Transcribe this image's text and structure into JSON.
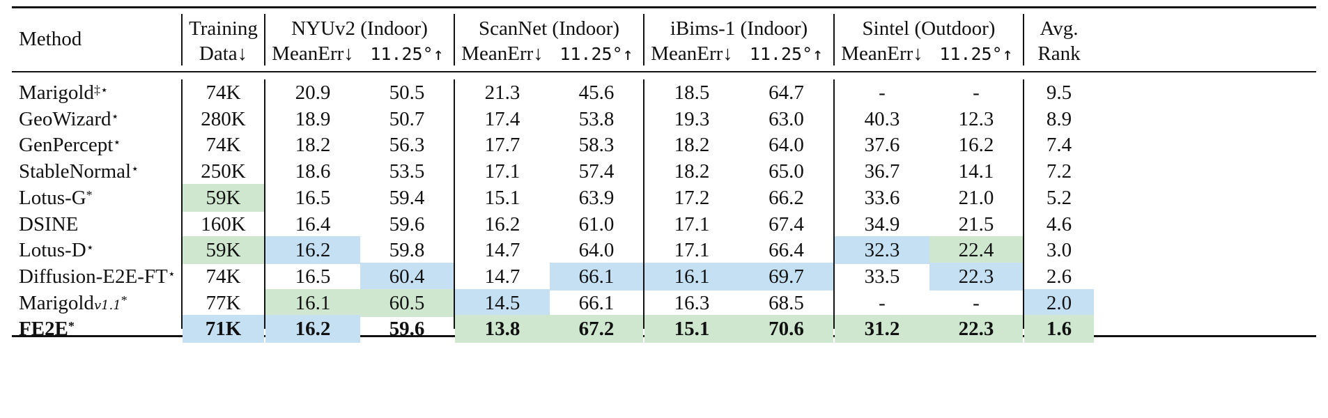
{
  "table": {
    "header": {
      "method": "Method",
      "training_line1": "Training",
      "training_line2": "Data↓",
      "groups": [
        "NYUv2 (Indoor)",
        "ScanNet (Indoor)",
        "iBims-1 (Indoor)",
        "Sintel (Outdoor)"
      ],
      "meanerr": "MeanErr↓",
      "angle": "11.25°↑",
      "rank_line1": "Avg.",
      "rank_line2": "Rank"
    },
    "rows": [
      {
        "name": "Marigold",
        "sup": "‡⋆",
        "sub": "",
        "bold": false,
        "values": [
          "74K",
          "20.9",
          "50.5",
          "21.3",
          "45.6",
          "18.5",
          "64.7",
          "-",
          "-",
          "9.5"
        ],
        "highlight": [
          "",
          "",
          "",
          "",
          "",
          "",
          "",
          "",
          "",
          ""
        ]
      },
      {
        "name": "GeoWizard",
        "sup": "⋆",
        "sub": "",
        "bold": false,
        "values": [
          "280K",
          "18.9",
          "50.7",
          "17.4",
          "53.8",
          "19.3",
          "63.0",
          "40.3",
          "12.3",
          "8.9"
        ],
        "highlight": [
          "",
          "",
          "",
          "",
          "",
          "",
          "",
          "",
          "",
          ""
        ]
      },
      {
        "name": "GenPercept",
        "sup": "⋆",
        "sub": "",
        "bold": false,
        "values": [
          "74K",
          "18.2",
          "56.3",
          "17.7",
          "58.3",
          "18.2",
          "64.0",
          "37.6",
          "16.2",
          "7.4"
        ],
        "highlight": [
          "",
          "",
          "",
          "",
          "",
          "",
          "",
          "",
          "",
          ""
        ]
      },
      {
        "name": "StableNormal",
        "sup": "⋆",
        "sub": "",
        "bold": false,
        "values": [
          "250K",
          "18.6",
          "53.5",
          "17.1",
          "57.4",
          "18.2",
          "65.0",
          "36.7",
          "14.1",
          "7.2"
        ],
        "highlight": [
          "",
          "",
          "",
          "",
          "",
          "",
          "",
          "",
          "",
          ""
        ]
      },
      {
        "name": "Lotus-G",
        "sup": "*",
        "sub": "",
        "bold": false,
        "values": [
          "59K",
          "16.5",
          "59.4",
          "15.1",
          "63.9",
          "17.2",
          "66.2",
          "33.6",
          "21.0",
          "5.2"
        ],
        "highlight": [
          "green",
          "",
          "",
          "",
          "",
          "",
          "",
          "",
          "",
          ""
        ]
      },
      {
        "name": "DSINE",
        "sup": "",
        "sub": "",
        "bold": false,
        "values": [
          "160K",
          "16.4",
          "59.6",
          "16.2",
          "61.0",
          "17.1",
          "67.4",
          "34.9",
          "21.5",
          "4.6"
        ],
        "highlight": [
          "",
          "",
          "",
          "",
          "",
          "",
          "",
          "",
          "",
          ""
        ]
      },
      {
        "name": "Lotus-D",
        "sup": "⋆",
        "sub": "",
        "bold": false,
        "values": [
          "59K",
          "16.2",
          "59.8",
          "14.7",
          "64.0",
          "17.1",
          "66.4",
          "32.3",
          "22.4",
          "3.0"
        ],
        "highlight": [
          "green",
          "blue",
          "",
          "",
          "",
          "",
          "",
          "blue",
          "green",
          ""
        ]
      },
      {
        "name": "Diffusion-E2E-FT",
        "sup": "⋆",
        "sub": "",
        "bold": false,
        "values": [
          "74K",
          "16.5",
          "60.4",
          "14.7",
          "66.1",
          "16.1",
          "69.7",
          "33.5",
          "22.3",
          "2.6"
        ],
        "highlight": [
          "",
          "",
          "blue",
          "",
          "blue",
          "blue",
          "blue",
          "",
          "blue",
          ""
        ]
      },
      {
        "name": "Marigold",
        "sup": " *",
        "sub": "v1.1",
        "bold": false,
        "values": [
          "77K",
          "16.1",
          "60.5",
          "14.5",
          "66.1",
          "16.3",
          "68.5",
          "-",
          "-",
          "2.0"
        ],
        "highlight": [
          "",
          "green",
          "green",
          "blue",
          "",
          "",
          "",
          "",
          "",
          "blue"
        ]
      },
      {
        "name": "FE2E",
        "sup": "*",
        "sub": "",
        "bold": true,
        "values": [
          "71K",
          "16.2",
          "59.6",
          "13.8",
          "67.2",
          "15.1",
          "70.6",
          "31.2",
          "22.3",
          "1.6"
        ],
        "highlight": [
          "blue",
          "blue",
          "",
          "green",
          "green",
          "green",
          "green",
          "green",
          "green",
          "green"
        ]
      }
    ]
  }
}
